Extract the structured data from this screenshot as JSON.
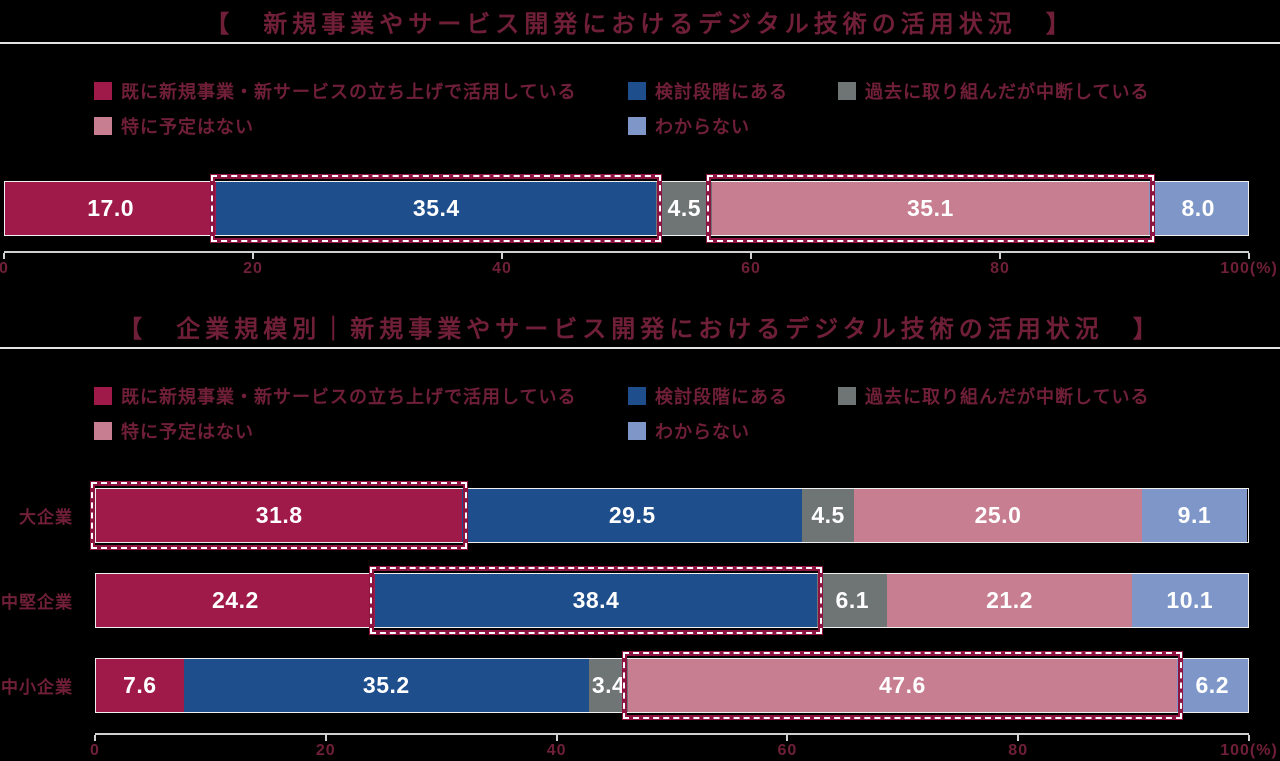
{
  "colors": {
    "background": "#000000",
    "heading_text": "#701f38",
    "divider_line": "#e3e3e3",
    "axis_line": "#d0d0d0",
    "value_text": "#ffffff",
    "bar_border": "#f0f0f0",
    "highlight_border": "#8d1340",
    "highlight_dash": "#ffffff",
    "series": [
      "#9f1a48",
      "#1e4e8c",
      "#6f7475",
      "#c77e90",
      "#7e97c8"
    ]
  },
  "legend": {
    "items": [
      "既に新規事業・新サービスの立ち上げで活用している",
      "検討段階にある",
      "過去に取り組んだが中断している",
      "特に予定はない",
      "わからない"
    ]
  },
  "chart1": {
    "title": "【　新規事業やサービス開発におけるデジタル技術の活用状況　】",
    "values": [
      17.0,
      35.4,
      4.5,
      35.1,
      8.0
    ],
    "highlight_indexes": [
      1,
      3
    ]
  },
  "chart2": {
    "title": "【　企業規模別｜新規事業やサービス開発におけるデジタル技術の活用状況　】",
    "rows": [
      {
        "label": "大企業",
        "values": [
          31.8,
          29.5,
          4.5,
          25.0,
          9.1
        ],
        "highlight_indexes": [
          0
        ]
      },
      {
        "label": "中堅企業",
        "values": [
          24.2,
          38.4,
          6.1,
          21.2,
          10.1
        ],
        "highlight_indexes": [
          1
        ]
      },
      {
        "label": "中小企業",
        "values": [
          7.6,
          35.2,
          3.4,
          47.6,
          6.2
        ],
        "highlight_indexes": [
          3
        ]
      }
    ]
  },
  "axis": {
    "ticks": [
      "0",
      "20",
      "40",
      "60",
      "80",
      "100(%)"
    ],
    "positions": [
      0,
      20,
      40,
      60,
      80,
      100
    ]
  },
  "chart_data": [
    {
      "type": "bar",
      "stacked": true,
      "orientation": "horizontal",
      "title": "新規事業やサービス開発におけるデジタル技術の活用状況",
      "categories": [
        ""
      ],
      "series": [
        {
          "name": "既に新規事業・新サービスの立ち上げで活用している",
          "values": [
            17.0
          ],
          "color": "#9f1a48"
        },
        {
          "name": "検討段階にある",
          "values": [
            35.4
          ],
          "color": "#1e4e8c"
        },
        {
          "name": "過去に取り組んだが中断している",
          "values": [
            4.5
          ],
          "color": "#6f7475"
        },
        {
          "name": "特に予定はない",
          "values": [
            35.1
          ],
          "color": "#c77e90"
        },
        {
          "name": "わからない",
          "values": [
            8.0
          ],
          "color": "#7e97c8"
        }
      ],
      "xlim": [
        0,
        100
      ],
      "xlabel": "(%)",
      "x_ticks": [
        0,
        20,
        40,
        60,
        80,
        100
      ],
      "legend_position": "top",
      "grid": false,
      "highlighted_segments": [
        "検討段階にある",
        "特に予定はない"
      ]
    },
    {
      "type": "bar",
      "stacked": true,
      "orientation": "horizontal",
      "title": "企業規模別｜新規事業やサービス開発におけるデジタル技術の活用状況",
      "categories": [
        "大企業",
        "中堅企業",
        "中小企業"
      ],
      "series": [
        {
          "name": "既に新規事業・新サービスの立ち上げで活用している",
          "values": [
            31.8,
            24.2,
            7.6
          ],
          "color": "#9f1a48"
        },
        {
          "name": "検討段階にある",
          "values": [
            29.5,
            38.4,
            35.2
          ],
          "color": "#1e4e8c"
        },
        {
          "name": "過去に取り組んだが中断している",
          "values": [
            4.5,
            6.1,
            3.4
          ],
          "color": "#6f7475"
        },
        {
          "name": "特に予定はない",
          "values": [
            25.0,
            21.2,
            47.6
          ],
          "color": "#c77e90"
        },
        {
          "name": "わからない",
          "values": [
            9.1,
            10.1,
            6.2
          ],
          "color": "#7e97c8"
        }
      ],
      "xlim": [
        0,
        100
      ],
      "xlabel": "(%)",
      "x_ticks": [
        0,
        20,
        40,
        60,
        80,
        100
      ],
      "legend_position": "top",
      "grid": false,
      "highlighted_segments": [
        [
          "大企業",
          "既に新規事業・新サービスの立ち上げで活用している"
        ],
        [
          "中堅企業",
          "検討段階にある"
        ],
        [
          "中小企業",
          "特に予定はない"
        ]
      ]
    }
  ]
}
